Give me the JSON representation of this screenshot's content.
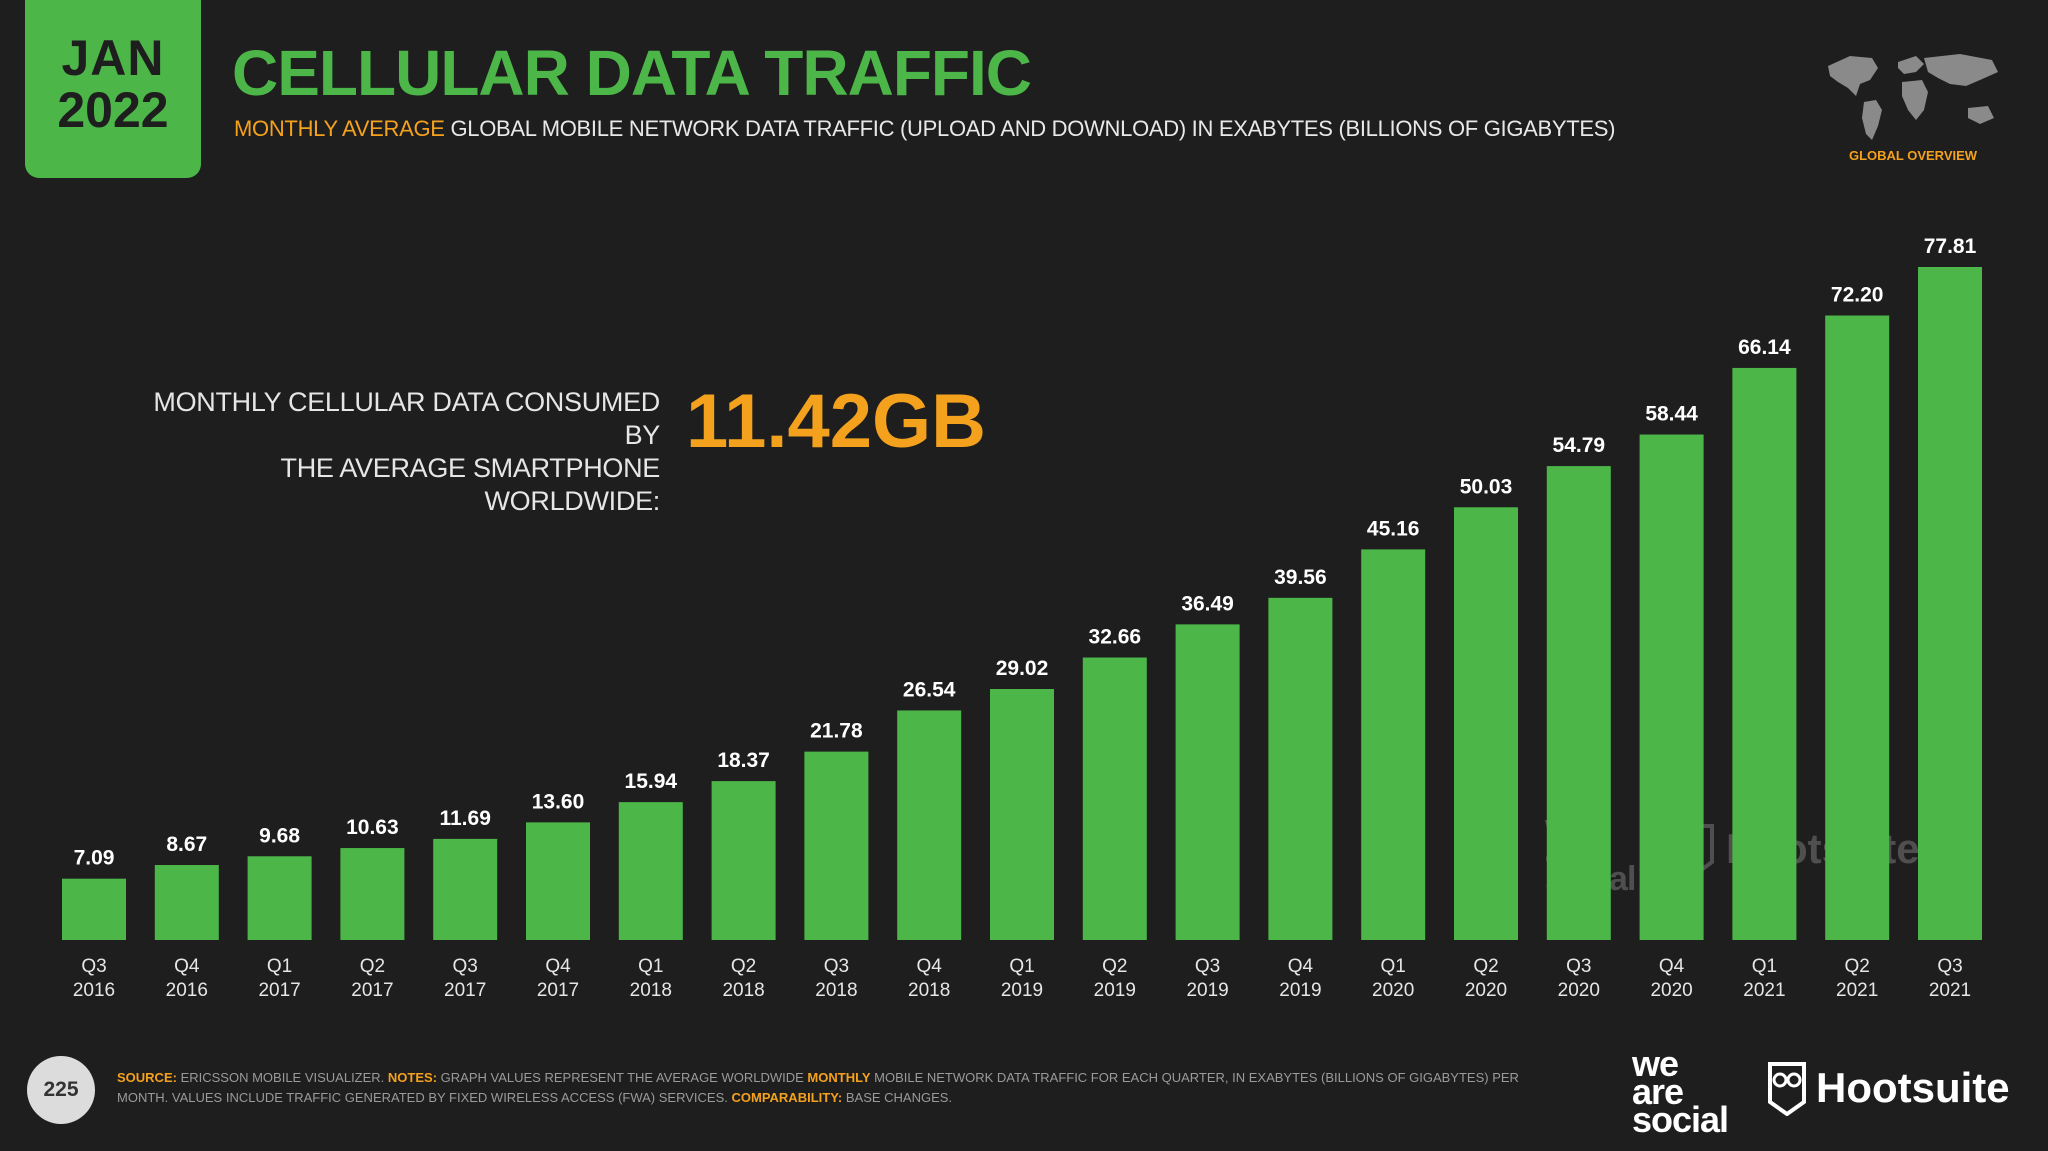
{
  "badge": {
    "month": "JAN",
    "year": "2022"
  },
  "header": {
    "title": "CELLULAR DATA TRAFFIC",
    "subtitle_highlight": "MONTHLY AVERAGE",
    "subtitle_rest": "GLOBAL MOBILE NETWORK DATA TRAFFIC (UPLOAD AND DOWNLOAD) IN EXABYTES (BILLIONS OF GIGABYTES)",
    "map_label": "GLOBAL OVERVIEW"
  },
  "kpi": {
    "line1": "MONTHLY CELLULAR DATA CONSUMED BY",
    "line2": "THE AVERAGE SMARTPHONE WORLDWIDE:",
    "value": "11.42GB"
  },
  "colors": {
    "bar": "#4cb748",
    "accent": "#f4a11e",
    "background": "#1e1e1e"
  },
  "chart_data": {
    "type": "bar",
    "title": "",
    "xlabel": "",
    "ylabel": "",
    "categories": [
      "Q3 2016",
      "Q4 2016",
      "Q1 2017",
      "Q2 2017",
      "Q3 2017",
      "Q4 2017",
      "Q1 2018",
      "Q2 2018",
      "Q3 2018",
      "Q4 2018",
      "Q1 2019",
      "Q2 2019",
      "Q3 2019",
      "Q4 2019",
      "Q1 2020",
      "Q2 2020",
      "Q3 2020",
      "Q4 2020",
      "Q1 2021",
      "Q2 2021",
      "Q3 2021"
    ],
    "cat_top": [
      "Q3",
      "Q4",
      "Q1",
      "Q2",
      "Q3",
      "Q4",
      "Q1",
      "Q2",
      "Q3",
      "Q4",
      "Q1",
      "Q2",
      "Q3",
      "Q4",
      "Q1",
      "Q2",
      "Q3",
      "Q4",
      "Q1",
      "Q2",
      "Q3"
    ],
    "cat_bottom": [
      "2016",
      "2016",
      "2017",
      "2017",
      "2017",
      "2017",
      "2018",
      "2018",
      "2018",
      "2018",
      "2019",
      "2019",
      "2019",
      "2019",
      "2020",
      "2020",
      "2020",
      "2020",
      "2021",
      "2021",
      "2021"
    ],
    "values": [
      7.09,
      8.67,
      9.68,
      10.63,
      11.69,
      13.6,
      15.94,
      18.37,
      21.78,
      26.54,
      29.02,
      32.66,
      36.49,
      39.56,
      45.16,
      50.03,
      54.79,
      58.44,
      66.14,
      72.2,
      77.81
    ],
    "labels": [
      "7.09",
      "8.67",
      "9.68",
      "10.63",
      "11.69",
      "13.60",
      "15.94",
      "18.37",
      "21.78",
      "26.54",
      "29.02",
      "32.66",
      "36.49",
      "39.56",
      "45.16",
      "50.03",
      "54.79",
      "58.44",
      "66.14",
      "72.20",
      "77.81"
    ],
    "ylim": [
      0,
      77.81
    ],
    "grid": false,
    "legend": "none"
  },
  "footer": {
    "page": "225",
    "source_key": "SOURCE:",
    "source_text": "ERICSSON MOBILE VISUALIZER.",
    "notes_key": "NOTES:",
    "notes_text_1": "GRAPH VALUES REPRESENT THE AVERAGE WORLDWIDE",
    "notes_highlight": "MONTHLY",
    "notes_text_2": "MOBILE NETWORK DATA TRAFFIC FOR EACH QUARTER, IN EXABYTES (BILLIONS OF GIGABYTES) PER MONTH. VALUES INCLUDE TRAFFIC GENERATED BY FIXED WIRELESS ACCESS (FWA) SERVICES.",
    "comparability_key": "COMPARABILITY:",
    "comparability_text": "BASE CHANGES."
  },
  "logos": {
    "was_line1": "we",
    "was_line2": "are",
    "was_line3": "social",
    "hootsuite": "Hootsuite"
  }
}
